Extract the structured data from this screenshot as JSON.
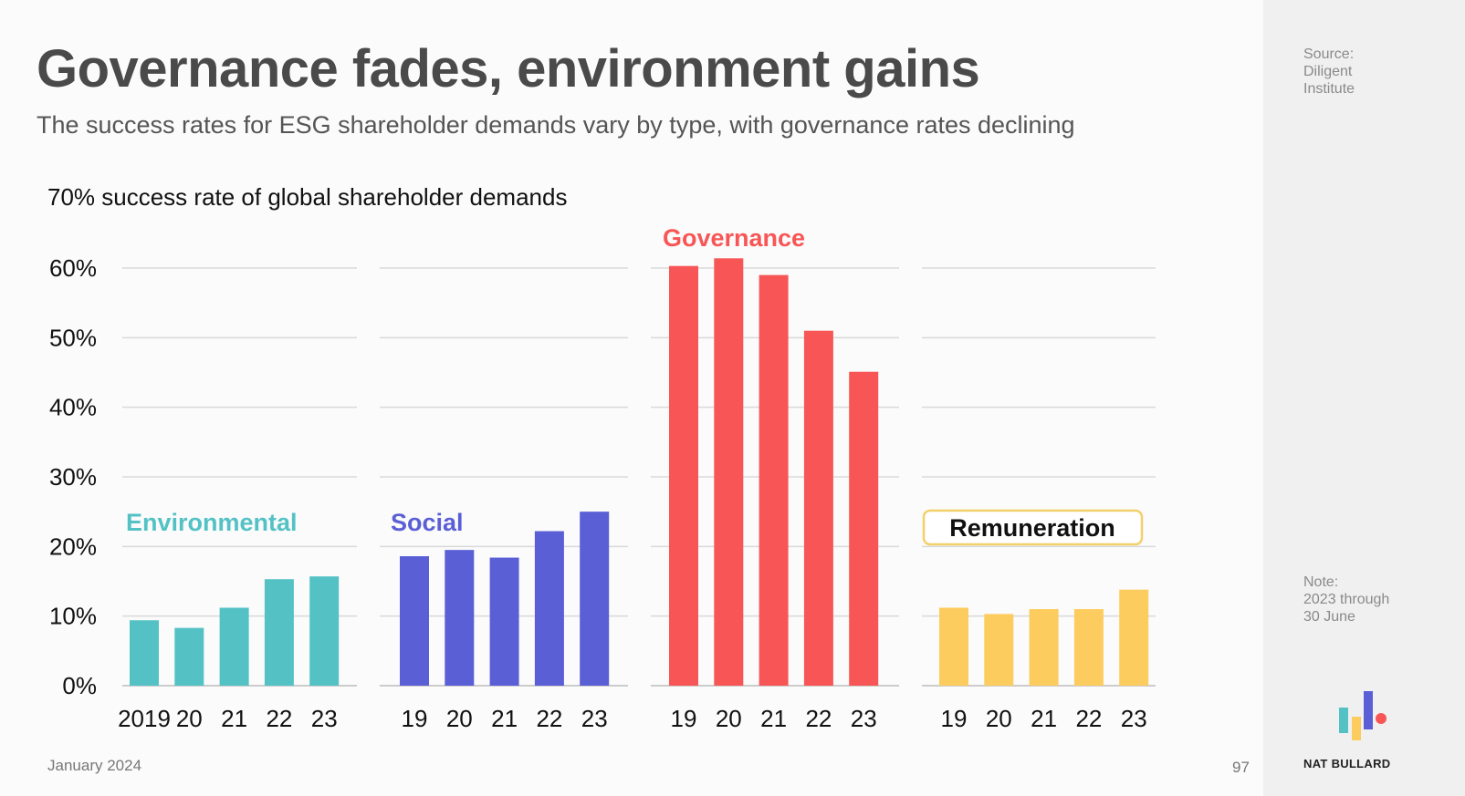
{
  "header": {
    "title": "Governance fades, environment gains",
    "subtitle": "The success rates for ESG shareholder demands vary by type, with governance rates declining"
  },
  "footer": {
    "date": "January 2024",
    "page": "97"
  },
  "sidebar": {
    "source": [
      "Source:",
      "Diligent",
      "Institute"
    ],
    "note": [
      "Note:",
      "2023 through",
      "30 June"
    ],
    "brand": "NAT BULLARD"
  },
  "colors": {
    "environmental": "#54c2c5",
    "social": "#5b5fd6",
    "governance": "#f85656",
    "remuneration": "#fdcc5f",
    "remuneration_border": "#f3d06a"
  },
  "chart_data": {
    "type": "bar",
    "title": "70% success rate of global shareholder demands",
    "ylim": [
      0,
      0.6
    ],
    "yticks": [
      0,
      0.1,
      0.2,
      0.3,
      0.4,
      0.5,
      0.6
    ],
    "yticklabels": [
      "0%",
      "10%",
      "20%",
      "30%",
      "40%",
      "50%",
      "60%"
    ],
    "grid": true,
    "series": [
      {
        "name": "Environmental",
        "color": "#54c2c5",
        "categories": [
          "2019",
          "20",
          "21",
          "22",
          "23"
        ],
        "values": [
          0.094,
          0.083,
          0.112,
          0.153,
          0.157
        ]
      },
      {
        "name": "Social",
        "color": "#5b5fd6",
        "categories": [
          "19",
          "20",
          "21",
          "22",
          "23"
        ],
        "values": [
          0.186,
          0.195,
          0.184,
          0.222,
          0.25
        ]
      },
      {
        "name": "Governance",
        "color": "#f85656",
        "categories": [
          "19",
          "20",
          "21",
          "22",
          "23"
        ],
        "values": [
          0.603,
          0.614,
          0.59,
          0.51,
          0.451
        ]
      },
      {
        "name": "Remuneration",
        "color": "#fdcc5f",
        "categories": [
          "19",
          "20",
          "21",
          "22",
          "23"
        ],
        "values": [
          0.112,
          0.103,
          0.11,
          0.11,
          0.138
        ]
      }
    ]
  }
}
